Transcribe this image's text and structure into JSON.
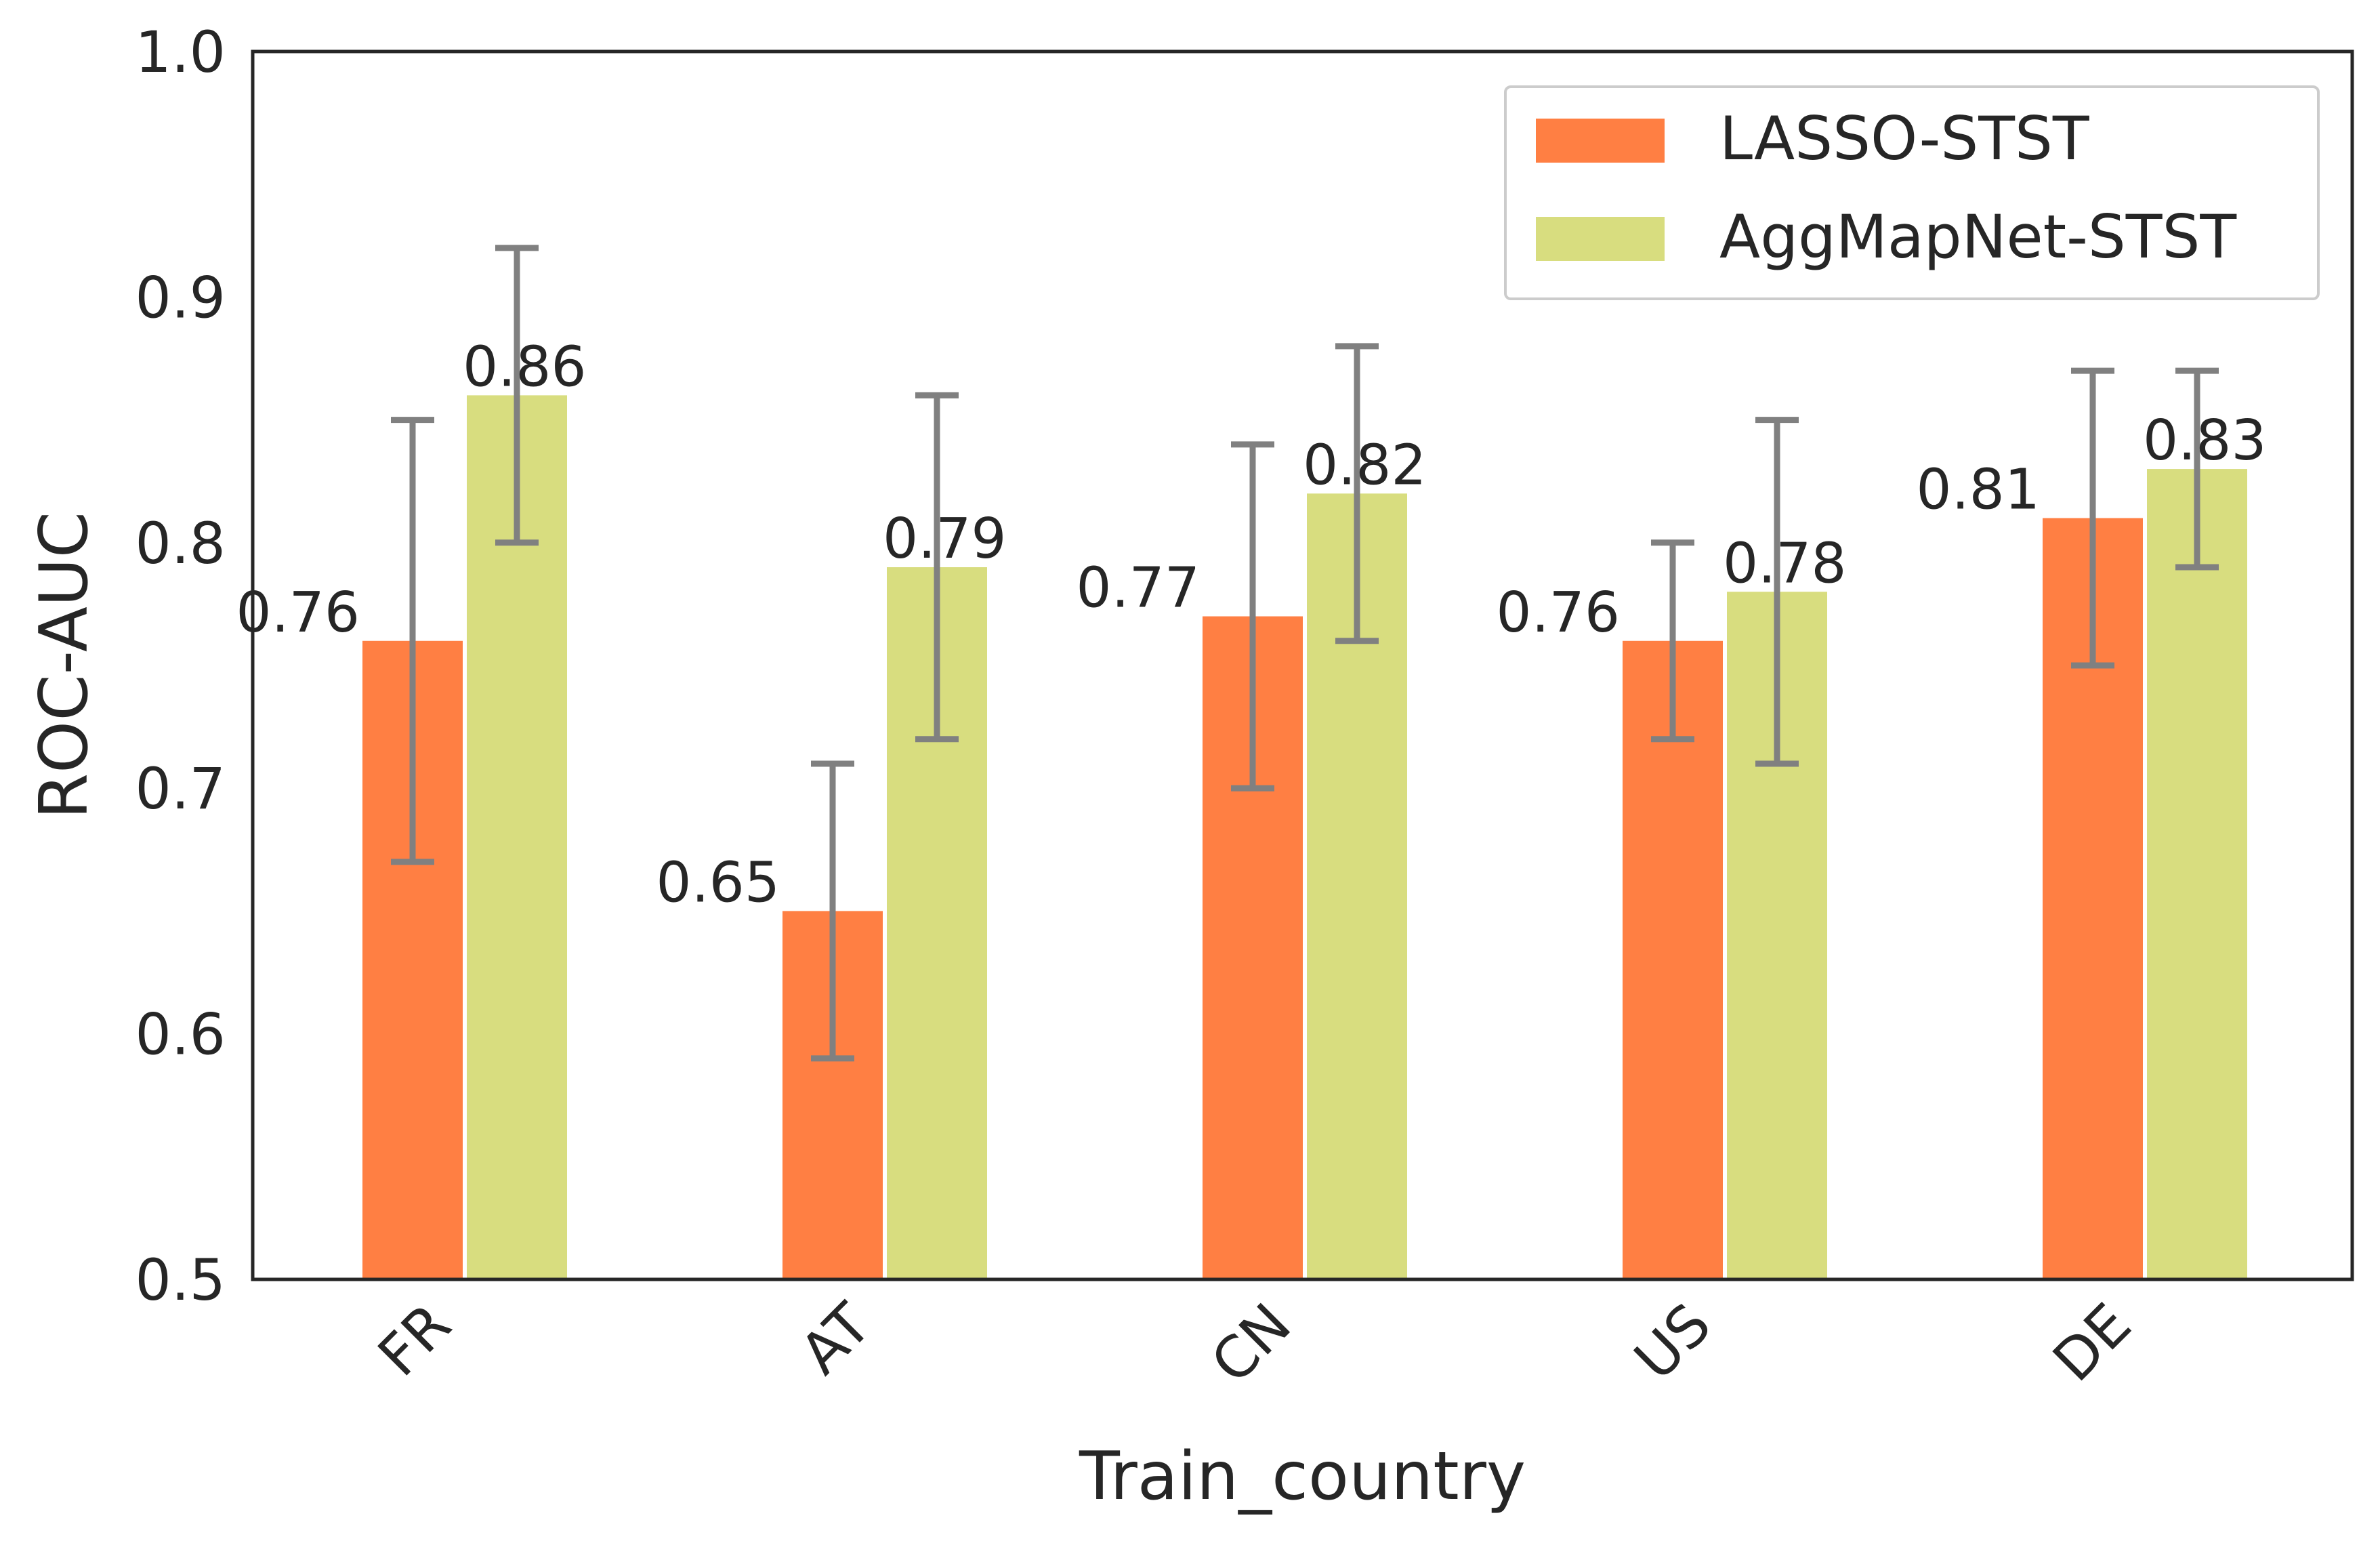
{
  "chart_data": {
    "type": "bar",
    "title": "",
    "xlabel": "Train_country",
    "ylabel": "ROC-AUC",
    "ylim": [
      0.5,
      1.0
    ],
    "yticks": [
      "0.5",
      "0.6",
      "0.7",
      "0.8",
      "0.9",
      "1.0"
    ],
    "categories": [
      "FR",
      "AT",
      "CN",
      "US",
      "DE"
    ],
    "grid": false,
    "legend_position": "top-right",
    "error_bar_color": "#808080",
    "series": [
      {
        "name": "LASSO-STST",
        "color": "#ff7f43",
        "values": [
          0.76,
          0.65,
          0.77,
          0.76,
          0.81
        ],
        "labels": [
          "0.76",
          "0.65",
          "0.77",
          "0.76",
          "0.81"
        ],
        "err_low": [
          0.67,
          0.59,
          0.7,
          0.72,
          0.75
        ],
        "err_high": [
          0.85,
          0.71,
          0.84,
          0.8,
          0.87
        ]
      },
      {
        "name": "AggMapNet-STST",
        "color": "#d8dd7f",
        "values": [
          0.86,
          0.79,
          0.82,
          0.78,
          0.83
        ],
        "labels": [
          "0.86",
          "0.79",
          "0.82",
          "0.78",
          "0.83"
        ],
        "err_low": [
          0.8,
          0.72,
          0.76,
          0.71,
          0.79
        ],
        "err_high": [
          0.92,
          0.86,
          0.88,
          0.85,
          0.87
        ]
      }
    ]
  }
}
